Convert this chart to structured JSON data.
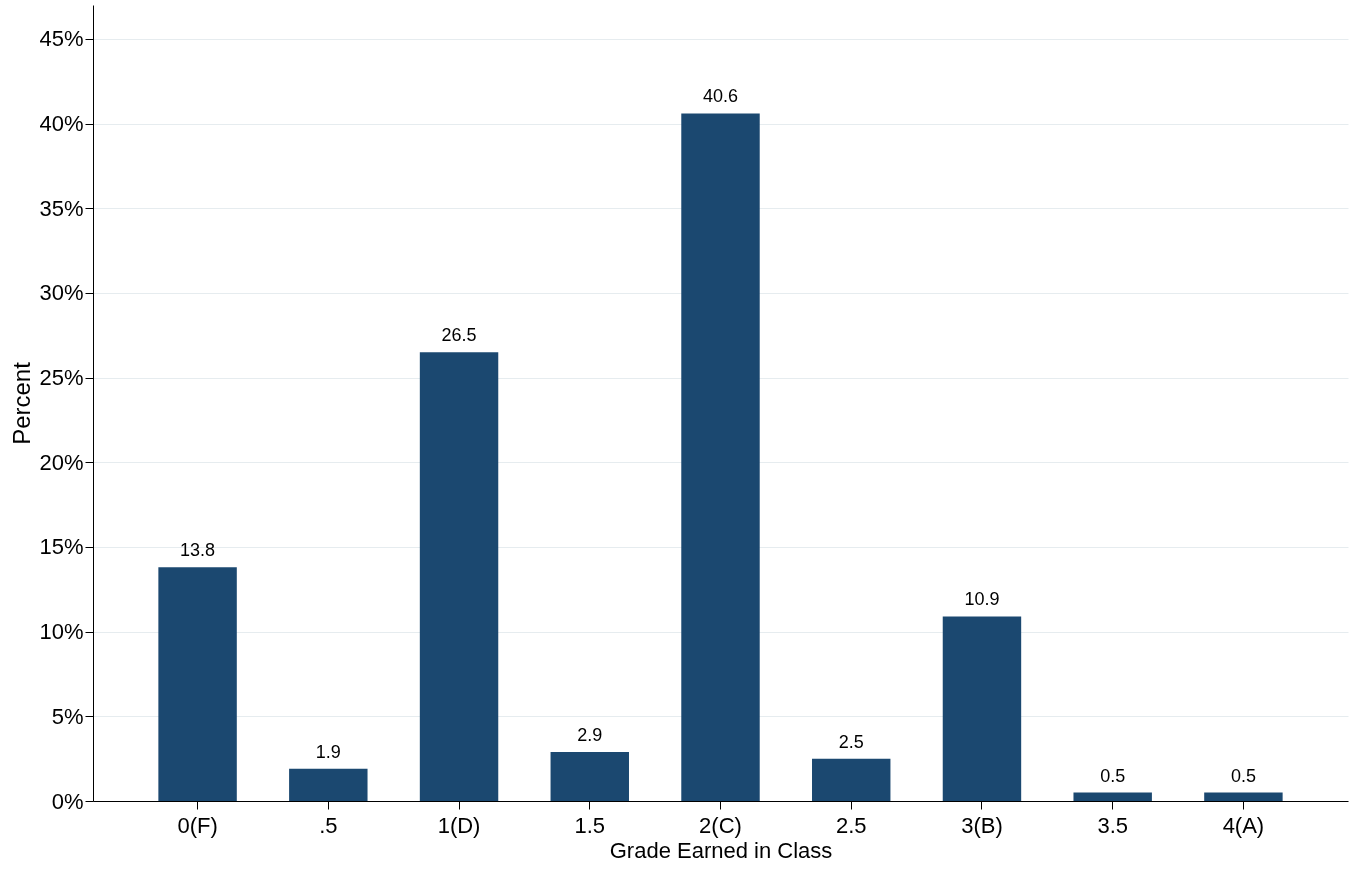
{
  "chart_data": {
    "type": "bar",
    "xlabel": "Grade Earned in Class",
    "ylabel": "Percent",
    "categories": [
      "0(F)",
      ".5",
      "1(D)",
      "1.5",
      "2(C)",
      "2.5",
      "3(B)",
      "3.5",
      "4(A)"
    ],
    "values": [
      13.8,
      1.9,
      26.5,
      2.9,
      40.6,
      2.5,
      10.9,
      0.5,
      0.5
    ],
    "color": "#1b4870",
    "ylim": [
      0,
      47
    ],
    "yticks": [
      {
        "value": 0,
        "label": "0%"
      },
      {
        "value": 5,
        "label": "5%"
      },
      {
        "value": 10,
        "label": "10%"
      },
      {
        "value": 15,
        "label": "15%"
      },
      {
        "value": 20,
        "label": "20%"
      },
      {
        "value": 25,
        "label": "25%"
      },
      {
        "value": 30,
        "label": "30%"
      },
      {
        "value": 35,
        "label": "35%"
      },
      {
        "value": 40,
        "label": "40%"
      },
      {
        "value": 45,
        "label": "45%"
      }
    ],
    "grid": "y",
    "data_labels": true
  }
}
